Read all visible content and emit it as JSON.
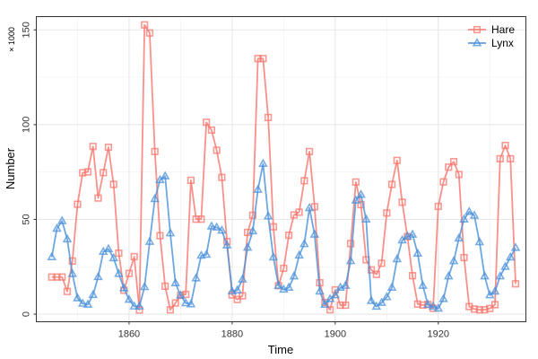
{
  "chart_data": {
    "type": "line",
    "xlabel": "Time",
    "ylabel": "Number",
    "y_unit_label": "× 1000",
    "xlim": [
      1842,
      1937
    ],
    "ylim": [
      -4,
      157
    ],
    "x_ticks": [
      1860,
      1880,
      1900,
      1920
    ],
    "y_ticks": [
      0,
      50,
      100,
      150
    ],
    "grid": true,
    "legend_position": "top-right",
    "x": [
      1845,
      1846,
      1847,
      1848,
      1849,
      1850,
      1851,
      1852,
      1853,
      1854,
      1855,
      1856,
      1857,
      1858,
      1859,
      1860,
      1861,
      1862,
      1863,
      1864,
      1865,
      1866,
      1867,
      1868,
      1869,
      1870,
      1871,
      1872,
      1873,
      1874,
      1875,
      1876,
      1877,
      1878,
      1879,
      1880,
      1881,
      1882,
      1883,
      1884,
      1885,
      1886,
      1887,
      1888,
      1889,
      1890,
      1891,
      1892,
      1893,
      1894,
      1895,
      1896,
      1897,
      1898,
      1899,
      1900,
      1901,
      1902,
      1903,
      1904,
      1905,
      1906,
      1907,
      1908,
      1909,
      1910,
      1911,
      1912,
      1913,
      1914,
      1915,
      1916,
      1917,
      1918,
      1919,
      1920,
      1921,
      1922,
      1923,
      1924,
      1925,
      1926,
      1927,
      1928,
      1929,
      1930,
      1931,
      1932,
      1933,
      1934,
      1935
    ],
    "series": [
      {
        "name": "Hare",
        "color": "#F8766D",
        "marker": "square",
        "values": [
          19.58,
          19.6,
          19.61,
          11.99,
          28.04,
          58.0,
          74.6,
          75.09,
          88.48,
          61.28,
          74.67,
          88.06,
          68.51,
          32.19,
          12.64,
          21.49,
          30.35,
          2.18,
          152.65,
          148.36,
          85.81,
          41.41,
          14.75,
          2.28,
          5.91,
          9.95,
          10.44,
          70.64,
          50.12,
          50.13,
          101.25,
          97.12,
          86.51,
          72.17,
          38.32,
          10.11,
          7.74,
          9.67,
          43.12,
          52.21,
          134.85,
          134.86,
          103.79,
          46.1,
          15.03,
          24.2,
          41.65,
          52.34,
          53.78,
          70.4,
          85.81,
          56.69,
          16.59,
          6.16,
          2.3,
          12.82,
          4.72,
          4.73,
          37.22,
          69.72,
          57.78,
          28.68,
          23.37,
          21.0,
          26.86,
          53.39,
          68.48,
          81.12,
          59.08,
          40.9,
          20.3,
          5.31,
          4.8,
          5.12,
          3.1,
          56.87,
          69.78,
          77.59,
          80.45,
          73.7,
          29.86,
          4.0,
          2.7,
          2.3,
          2.35,
          3.0,
          5.0,
          82.0,
          89.0,
          82.0,
          16.0
        ]
      },
      {
        "name": "Lynx",
        "color": "#4A90D9",
        "marker": "triangle",
        "values": [
          30.09,
          45.15,
          49.15,
          39.52,
          21.23,
          8.42,
          5.56,
          5.08,
          10.17,
          19.6,
          32.91,
          34.38,
          29.59,
          21.3,
          13.69,
          7.65,
          4.08,
          4.09,
          14.33,
          38.22,
          60.78,
          70.77,
          72.77,
          42.68,
          16.39,
          9.83,
          5.8,
          5.26,
          18.91,
          30.9,
          31.38,
          46.34,
          45.77,
          44.15,
          36.33,
          12.03,
          12.6,
          18.34,
          35.14,
          43.77,
          65.69,
          79.35,
          51.65,
          29.99,
          15.02,
          13.0,
          14.0,
          20.0,
          31.0,
          37.0,
          56.0,
          42.0,
          12.0,
          5.0,
          8.0,
          10.0,
          14.0,
          15.0,
          28.0,
          60.0,
          63.0,
          50.0,
          7.0,
          4.0,
          6.0,
          9.0,
          14.0,
          29.0,
          39.0,
          41.0,
          42.0,
          32.0,
          15.0,
          5.0,
          4.0,
          3.0,
          8.0,
          20.0,
          28.0,
          40.0,
          50.0,
          54.0,
          52.0,
          38.0,
          20.0,
          10.0,
          12.0,
          20.0,
          25.0,
          30.0,
          35.0
        ]
      }
    ]
  }
}
